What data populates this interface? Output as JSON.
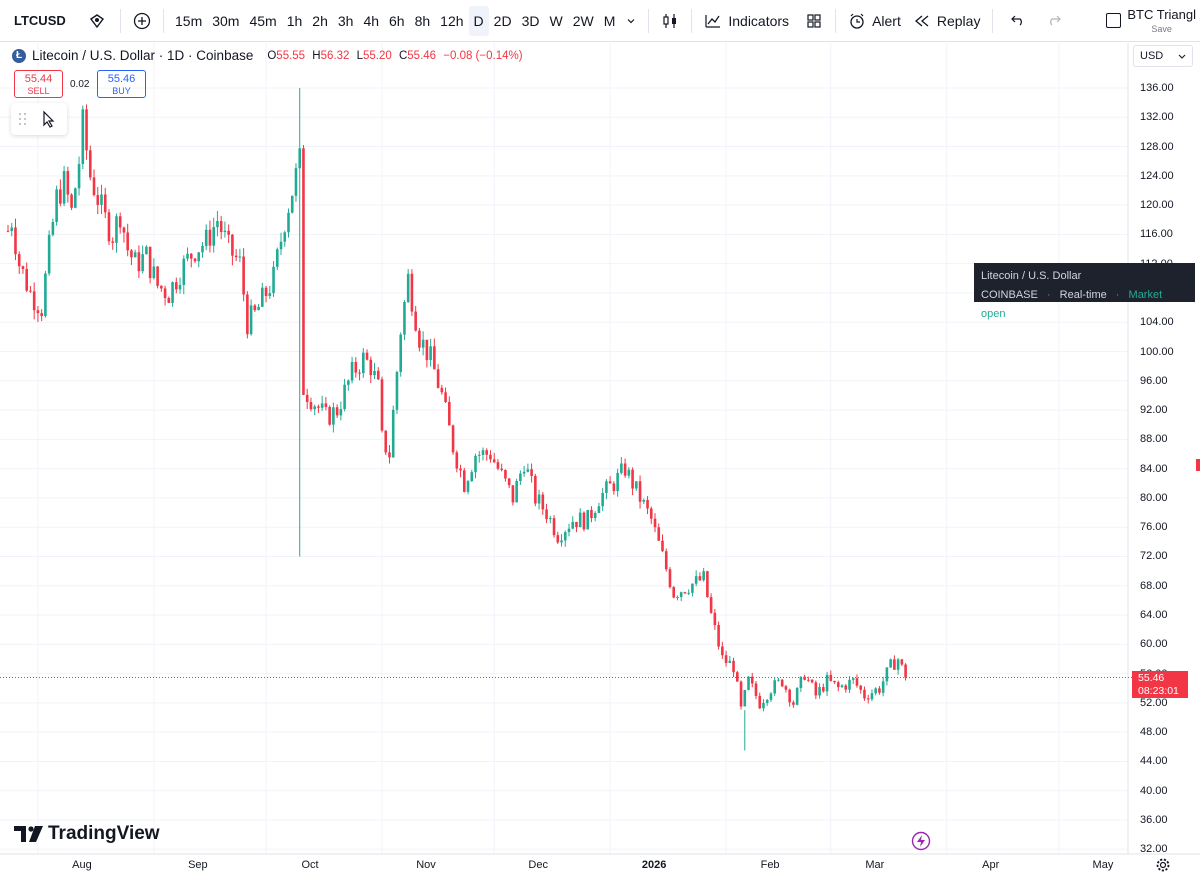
{
  "toolbar": {
    "symbol": "LTCUSD",
    "intervals": [
      "15m",
      "30m",
      "45m",
      "1h",
      "2h",
      "3h",
      "4h",
      "6h",
      "8h",
      "12h",
      "D",
      "2D",
      "3D",
      "W",
      "2W",
      "M"
    ],
    "active_interval": "D",
    "indicators_label": "Indicators",
    "alert_label": "Alert",
    "replay_label": "Replay",
    "layout_name": "BTC Triangl",
    "layout_save": "Save"
  },
  "legend": {
    "title": "Litecoin / U.S. Dollar · 1D · Coinbase",
    "o_key": "O",
    "o": "55.55",
    "h_key": "H",
    "h": "56.32",
    "l_key": "L",
    "l": "55.20",
    "c_key": "C",
    "c": "55.46",
    "change": "−0.08 (−0.14%)"
  },
  "trade": {
    "sell_price": "55.44",
    "sell_label": "SELL",
    "spread": "0.02",
    "buy_price": "55.46",
    "buy_label": "BUY"
  },
  "tooltip": {
    "line1": "Litecoin / U.S. Dollar",
    "exchange": "COINBASE",
    "mode": "Real-time",
    "status": "Market open"
  },
  "price_axis": {
    "currency": "USD",
    "labels": [
      "136.00",
      "132.00",
      "128.00",
      "124.00",
      "120.00",
      "116.00",
      "112.00",
      "108.00",
      "104.00",
      "100.00",
      "96.00",
      "92.00",
      "88.00",
      "84.00",
      "80.00",
      "76.00",
      "72.00",
      "68.00",
      "64.00",
      "60.00",
      "56.00",
      "52.00",
      "48.00",
      "44.00",
      "40.00",
      "36.00",
      "32.00"
    ],
    "last_price": "55.46",
    "countdown": "08:23:01"
  },
  "time_axis": {
    "labels": [
      "Aug",
      "Sep",
      "Oct",
      "Nov",
      "Dec",
      "2026",
      "Feb",
      "Mar",
      "Apr",
      "May"
    ]
  },
  "brand": "TradingView",
  "colors": {
    "up": "#22ab94",
    "down": "#f23645",
    "text": "#131722",
    "grid": "#f0f3fa"
  },
  "chart_data": {
    "type": "candlestick",
    "title": "Litecoin / U.S. Dollar · 1D · Coinbase",
    "ylim": [
      30,
      139
    ],
    "x_range": [
      "2025-07-24",
      "2026-05-22"
    ],
    "close_path": [
      [
        "2025-07-24",
        116.5
      ],
      [
        "2025-07-25",
        118
      ],
      [
        "2025-07-27",
        112
      ],
      [
        "2025-07-30",
        108
      ],
      [
        "2025-08-02",
        106
      ],
      [
        "2025-08-04",
        114
      ],
      [
        "2025-08-06",
        121
      ],
      [
        "2025-08-08",
        123
      ],
      [
        "2025-08-10",
        119
      ],
      [
        "2025-08-12",
        126
      ],
      [
        "2025-08-13",
        131
      ],
      [
        "2025-08-15",
        124
      ],
      [
        "2025-08-17",
        121
      ],
      [
        "2025-08-19",
        118
      ],
      [
        "2025-08-21",
        116
      ],
      [
        "2025-08-23",
        119
      ],
      [
        "2025-08-25",
        114
      ],
      [
        "2025-08-27",
        112
      ],
      [
        "2025-08-30",
        113
      ],
      [
        "2025-09-02",
        109
      ],
      [
        "2025-09-05",
        108
      ],
      [
        "2025-09-08",
        111
      ],
      [
        "2025-09-12",
        114
      ],
      [
        "2025-09-15",
        115
      ],
      [
        "2025-09-18",
        118
      ],
      [
        "2025-09-21",
        114
      ],
      [
        "2025-09-24",
        112
      ],
      [
        "2025-09-26",
        104
      ],
      [
        "2025-09-28",
        105
      ],
      [
        "2025-09-30",
        107
      ],
      [
        "2025-10-03",
        110
      ],
      [
        "2025-10-06",
        118
      ],
      [
        "2025-10-08",
        122
      ],
      [
        "2025-10-10",
        126
      ],
      [
        "2025-10-11",
        95
      ],
      [
        "2025-10-14",
        93
      ],
      [
        "2025-10-17",
        91
      ],
      [
        "2025-10-20",
        92
      ],
      [
        "2025-10-24",
        97
      ],
      [
        "2025-10-27",
        99
      ],
      [
        "2025-10-29",
        98
      ],
      [
        "2025-10-31",
        95
      ],
      [
        "2025-11-01",
        88
      ],
      [
        "2025-11-03",
        86
      ],
      [
        "2025-11-06",
        103
      ],
      [
        "2025-11-08",
        110
      ],
      [
        "2025-11-11",
        102
      ],
      [
        "2025-11-14",
        99
      ],
      [
        "2025-11-17",
        94
      ],
      [
        "2025-11-20",
        87
      ],
      [
        "2025-11-23",
        82
      ],
      [
        "2025-11-26",
        86
      ],
      [
        "2025-11-30",
        86
      ],
      [
        "2025-12-03",
        83
      ],
      [
        "2025-12-06",
        80
      ],
      [
        "2025-12-09",
        85
      ],
      [
        "2025-12-12",
        80
      ],
      [
        "2025-12-15",
        78
      ],
      [
        "2025-12-18",
        75
      ],
      [
        "2025-12-22",
        77
      ],
      [
        "2025-12-26",
        77
      ],
      [
        "2025-12-29",
        80
      ],
      [
        "2026-01-02",
        82
      ],
      [
        "2026-01-05",
        84
      ],
      [
        "2026-01-09",
        80
      ],
      [
        "2026-01-12",
        77
      ],
      [
        "2026-01-15",
        72
      ],
      [
        "2026-01-18",
        67
      ],
      [
        "2026-01-22",
        68
      ],
      [
        "2026-01-26",
        69
      ],
      [
        "2026-01-28",
        64
      ],
      [
        "2026-01-31",
        58
      ],
      [
        "2026-02-03",
        57
      ],
      [
        "2026-02-05",
        51
      ],
      [
        "2026-02-07",
        55
      ],
      [
        "2026-02-10",
        52
      ],
      [
        "2026-02-13",
        54
      ],
      [
        "2026-02-16",
        55
      ],
      [
        "2026-02-19",
        52
      ],
      [
        "2026-02-22",
        56
      ],
      [
        "2026-02-25",
        53
      ],
      [
        "2026-02-28",
        55
      ],
      [
        "2026-03-03",
        54
      ],
      [
        "2026-03-07",
        55
      ],
      [
        "2026-03-10",
        53
      ],
      [
        "2026-03-14",
        54
      ],
      [
        "2026-03-17",
        57
      ],
      [
        "2026-03-19",
        58
      ],
      [
        "2026-03-21",
        55.46
      ]
    ],
    "extreme_wicks": [
      {
        "date": "2025-10-10",
        "high": 136.0,
        "low": 72.0
      },
      {
        "date": "2026-02-06",
        "high": 51.0,
        "low": 45.5
      }
    ],
    "last_price": 55.46
  }
}
